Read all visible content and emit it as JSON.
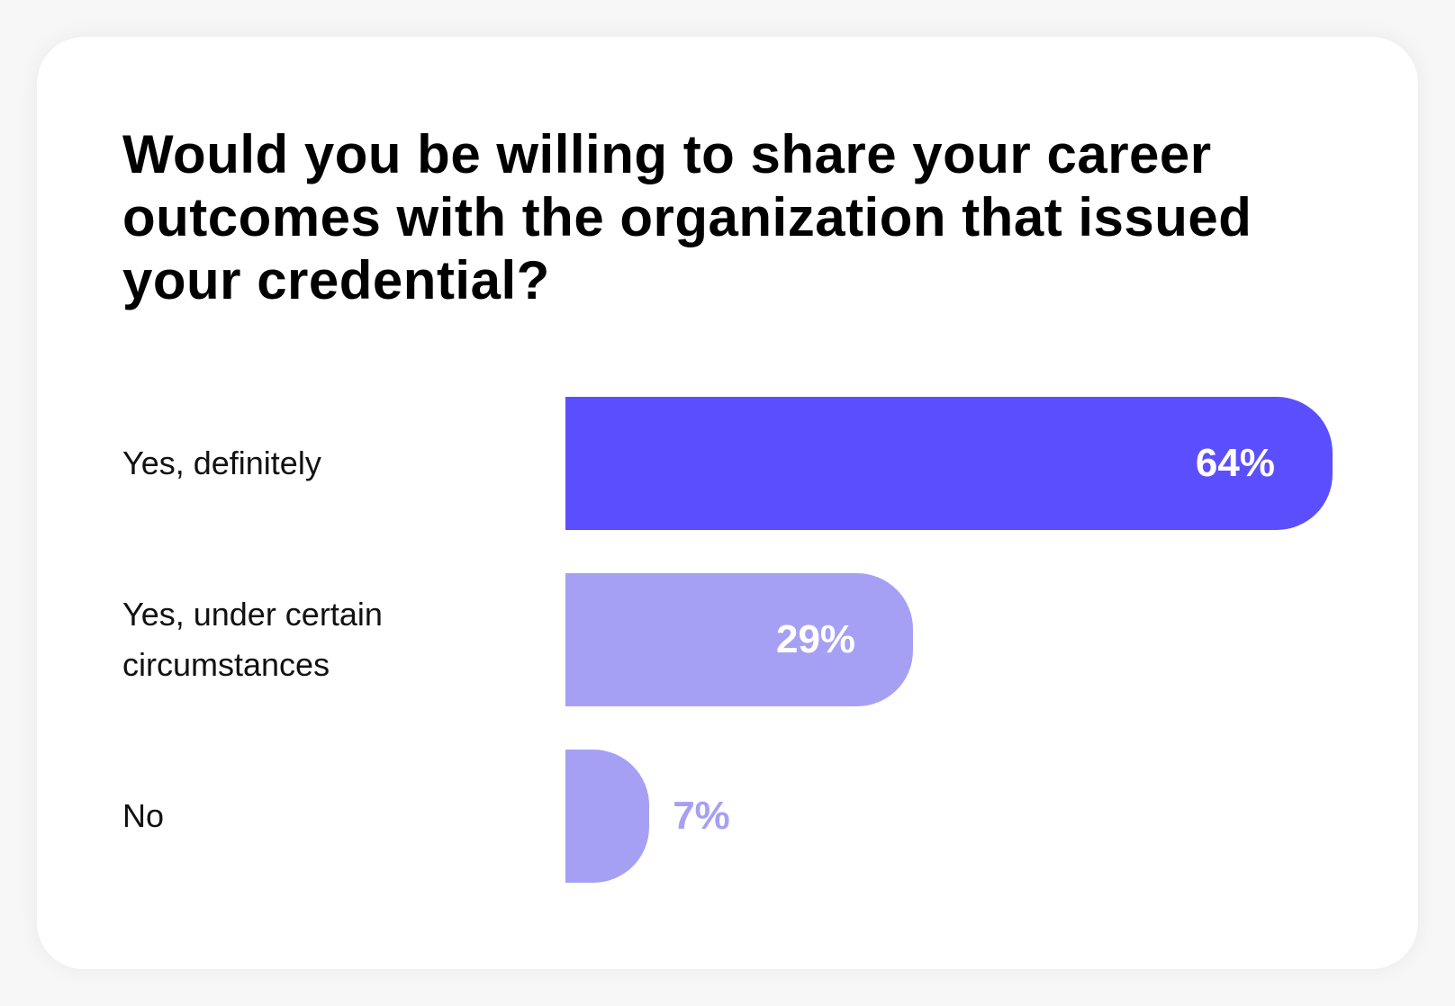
{
  "chart_data": {
    "type": "bar",
    "orientation": "horizontal",
    "title": "Would you be willing to share your career outcomes with the organization that issued your credential?",
    "categories": [
      "Yes, definitely",
      "Yes, under certain circumstances",
      "No"
    ],
    "values": [
      64,
      29,
      7
    ],
    "value_labels": [
      "64%",
      "29%",
      "7%"
    ],
    "colors": [
      "#5b4ffd",
      "#a6a0f5",
      "#a6a0f5"
    ],
    "xlim": [
      0,
      64
    ]
  }
}
